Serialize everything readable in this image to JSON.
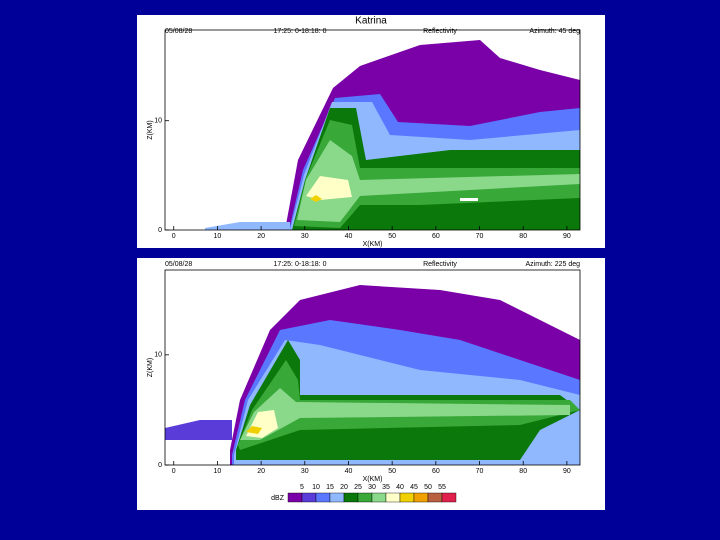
{
  "title": "Katrina",
  "panels": [
    {
      "date": "05/08/28",
      "time": "17:25: 0-18:18: 0",
      "field": "Reflectivity",
      "azimuth": "Azimuth:  45 deg",
      "xlabel": "X(KM)",
      "ylabel": "Z(KM)",
      "xlim": [
        -2,
        93
      ],
      "ylim": [
        0,
        18.3
      ],
      "xticks": [
        0,
        10,
        20,
        30,
        40,
        50,
        60,
        70,
        80,
        90
      ],
      "yticks": [
        0,
        10
      ]
    },
    {
      "date": "05/08/28",
      "time": "17:25: 0-18:18: 0",
      "field": "Reflectivity",
      "azimuth": "Azimuth: 225 deg",
      "xlabel": "X(KM)",
      "ylabel": "Z(KM)",
      "xlim": [
        -2,
        93
      ],
      "ylim": [
        0,
        17.7
      ],
      "xticks": [
        0,
        10,
        20,
        30,
        40,
        50,
        60,
        70,
        80,
        90
      ],
      "yticks": [
        0,
        10
      ]
    }
  ],
  "colorbar": {
    "label": "dBZ",
    "levels": [
      5,
      10,
      15,
      20,
      25,
      30,
      35,
      40,
      45,
      50,
      55
    ],
    "colors": [
      "#7a00a8",
      "#5a3cd8",
      "#5a78ff",
      "#90b8ff",
      "#0a780a",
      "#38a838",
      "#8ad88a",
      "#ffffc8",
      "#f0d000",
      "#f0a000",
      "#b86040",
      "#e0204a"
    ]
  }
}
